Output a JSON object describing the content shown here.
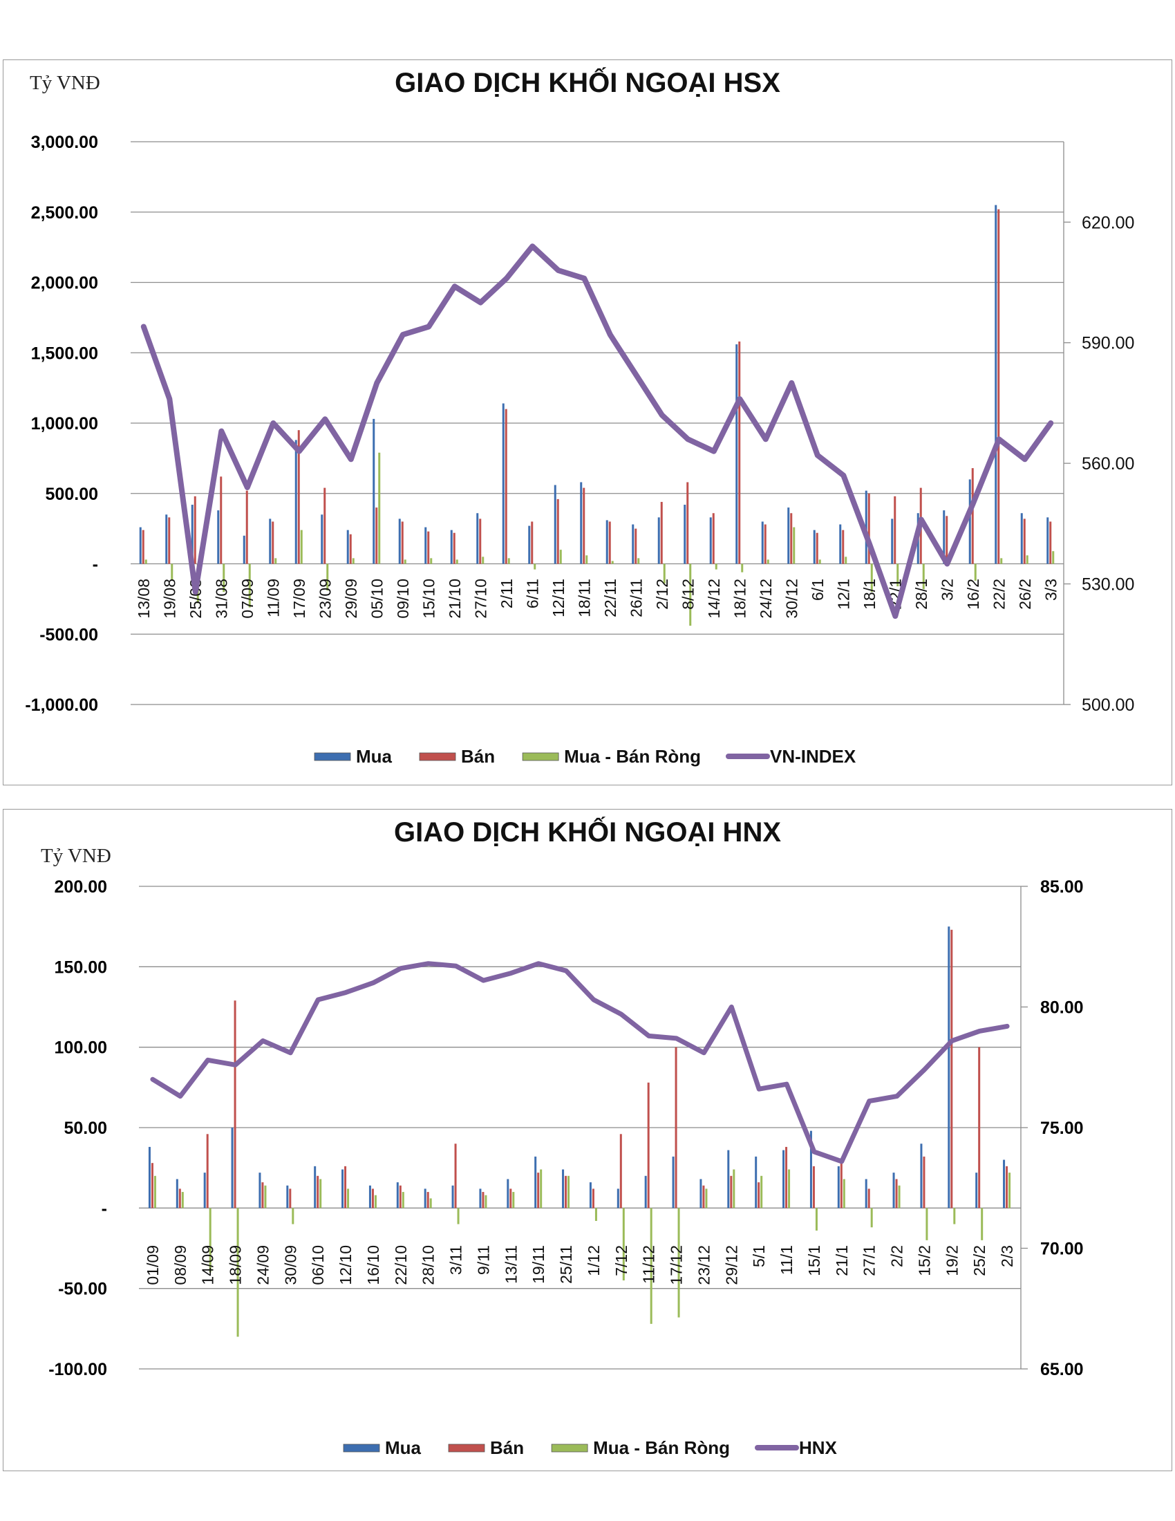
{
  "chart_data": [
    {
      "type": "bar",
      "title": "GIAO DỊCH KHỐI NGOẠI HSX",
      "ylabel": "Tỷ VNĐ",
      "ylim": [
        -1000,
        3000
      ],
      "y_ticks": [
        "3,000.00",
        "2,500.00",
        "2,000.00",
        "1,500.00",
        "1,000.00",
        "500.00",
        "-",
        "-500.00",
        "-1,000.00"
      ],
      "y2lim": [
        500,
        640
      ],
      "y2_ticks": [
        "620.00",
        "590.00",
        "560.00",
        "530.00",
        "500.00"
      ],
      "categories": [
        "13/08",
        "19/08",
        "25/08",
        "31/08",
        "07/09",
        "11/09",
        "17/09",
        "23/09",
        "29/09",
        "05/10",
        "09/10",
        "15/10",
        "21/10",
        "27/10",
        "2/11",
        "6/11",
        "12/11",
        "18/11",
        "22/11",
        "26/11",
        "2/12",
        "8/12",
        "14/12",
        "18/12",
        "24/12",
        "30/12",
        "6/1",
        "12/1",
        "18/1",
        "22/1",
        "28/1",
        "3/2",
        "16/2",
        "22/2",
        "26/2",
        "3/3"
      ],
      "series": [
        {
          "name": "Mua",
          "type": "bar",
          "color": "#3d6eb0",
          "values": [
            260,
            350,
            420,
            380,
            200,
            320,
            880,
            350,
            240,
            1030,
            320,
            260,
            240,
            360,
            1140,
            270,
            560,
            580,
            310,
            280,
            330,
            420,
            330,
            1560,
            300,
            400,
            240,
            280,
            520,
            320,
            360,
            380,
            600,
            2550,
            360,
            330
          ]
        },
        {
          "name": "Bán",
          "type": "bar",
          "color": "#c0504d",
          "values": [
            240,
            330,
            480,
            620,
            520,
            300,
            950,
            540,
            210,
            400,
            300,
            230,
            220,
            320,
            1100,
            300,
            460,
            540,
            300,
            250,
            440,
            580,
            360,
            1580,
            280,
            360,
            220,
            240,
            500,
            480,
            540,
            340,
            680,
            2520,
            320,
            300
          ]
        },
        {
          "name": "Mua - Bán Ròng",
          "type": "bar",
          "color": "#9bbb59",
          "values": [
            30,
            -120,
            -280,
            -200,
            -310,
            40,
            240,
            -190,
            40,
            790,
            30,
            40,
            30,
            50,
            40,
            -40,
            100,
            60,
            20,
            40,
            -140,
            -440,
            -40,
            -60,
            30,
            260,
            30,
            50,
            -200,
            -160,
            -180,
            60,
            -120,
            40,
            60,
            90
          ]
        },
        {
          "name": "VN-INDEX",
          "type": "line",
          "color": "#8064a2",
          "values": [
            594,
            576,
            528,
            568,
            554,
            570,
            563,
            571,
            561,
            580,
            592,
            594,
            604,
            600,
            606,
            614,
            608,
            606,
            592,
            582,
            572,
            566,
            563,
            576,
            566,
            580,
            562,
            557,
            540,
            522,
            546,
            535,
            550,
            566,
            561,
            570
          ]
        }
      ],
      "legend": [
        "Mua",
        "Bán",
        "Mua - Bán Ròng",
        "VN-INDEX"
      ],
      "legend_position": "bottom"
    },
    {
      "type": "bar",
      "title": "GIAO DỊCH KHỐI NGOẠI HNX",
      "ylabel": "Tỷ VNĐ",
      "ylim": [
        -100,
        200
      ],
      "y_ticks": [
        "200.00",
        "150.00",
        "100.00",
        "50.00",
        "-",
        "-50.00",
        "-100.00"
      ],
      "y2lim": [
        65,
        85
      ],
      "y2_ticks": [
        "85.00",
        "80.00",
        "75.00",
        "70.00",
        "65.00"
      ],
      "categories": [
        "01/09",
        "08/09",
        "14/09",
        "18/09",
        "24/09",
        "30/09",
        "06/10",
        "12/10",
        "16/10",
        "22/10",
        "28/10",
        "3/11",
        "9/11",
        "13/11",
        "19/11",
        "25/11",
        "1/12",
        "7/12",
        "11/12",
        "17/12",
        "23/12",
        "29/12",
        "5/1",
        "11/1",
        "15/1",
        "21/1",
        "27/1",
        "2/2",
        "15/2",
        "19/2",
        "25/2",
        "2/3"
      ],
      "series": [
        {
          "name": "Mua",
          "type": "bar",
          "color": "#3d6eb0",
          "values": [
            38,
            18,
            22,
            50,
            22,
            14,
            26,
            24,
            14,
            16,
            12,
            14,
            12,
            18,
            32,
            24,
            16,
            12,
            20,
            32,
            18,
            36,
            32,
            36,
            48,
            26,
            18,
            22,
            40,
            175,
            22,
            30
          ]
        },
        {
          "name": "Bán",
          "type": "bar",
          "color": "#c0504d",
          "values": [
            28,
            12,
            46,
            129,
            16,
            12,
            20,
            26,
            12,
            14,
            10,
            40,
            10,
            12,
            22,
            20,
            12,
            46,
            78,
            100,
            14,
            20,
            16,
            38,
            26,
            28,
            12,
            18,
            32,
            173,
            100,
            26
          ]
        },
        {
          "name": "Mua - Bán Ròng",
          "type": "bar",
          "color": "#9bbb59",
          "values": [
            20,
            10,
            -40,
            -80,
            14,
            -10,
            18,
            12,
            8,
            10,
            6,
            -10,
            8,
            10,
            24,
            20,
            -8,
            -45,
            -72,
            -68,
            12,
            24,
            20,
            24,
            -14,
            18,
            -12,
            14,
            -20,
            -10,
            -20,
            22
          ]
        },
        {
          "name": "HNX",
          "type": "line",
          "color": "#8064a2",
          "values": [
            77.0,
            76.3,
            77.8,
            77.6,
            78.6,
            78.1,
            80.3,
            80.6,
            81.0,
            81.6,
            81.8,
            81.7,
            81.1,
            81.4,
            81.8,
            81.5,
            80.3,
            79.7,
            78.8,
            78.7,
            78.1,
            80.0,
            76.6,
            76.8,
            74.0,
            73.6,
            76.1,
            76.3,
            77.4,
            78.6,
            79.0,
            79.2
          ]
        }
      ],
      "legend": [
        "Mua",
        "Bán",
        "Mua - Bán Ròng",
        "HNX"
      ],
      "legend_position": "bottom"
    }
  ]
}
